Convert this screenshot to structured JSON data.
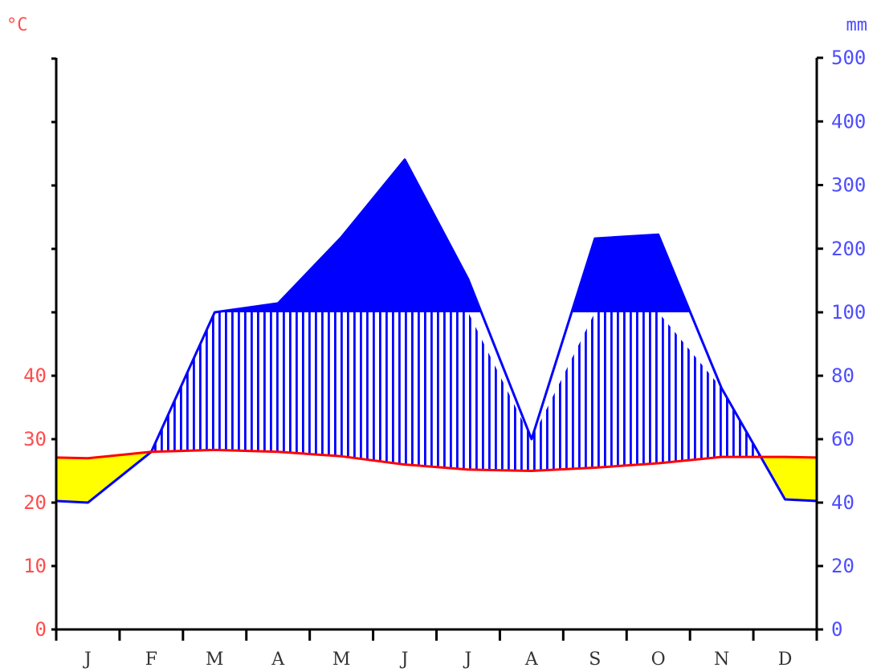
{
  "chart_data": {
    "type": "climate-diagram",
    "units": {
      "temperature": "°C",
      "precipitation": "mm"
    },
    "categories": [
      "J",
      "F",
      "M",
      "A",
      "M",
      "J",
      "J",
      "A",
      "S",
      "O",
      "N",
      "D"
    ],
    "temperature": [
      27,
      28,
      28.3,
      28,
      27.3,
      26,
      25.2,
      25,
      25.5,
      26.2,
      27.2,
      27.2
    ],
    "precipitation": [
      40,
      56,
      100,
      114,
      218,
      340,
      152,
      60,
      216,
      222,
      76,
      41
    ],
    "temperature_axis": {
      "ticks": [
        0,
        10,
        20,
        30,
        40
      ],
      "tick_labels": [
        "0",
        "10",
        "20",
        "30",
        "40"
      ],
      "max": 90,
      "unlabeled_ticks": [
        50,
        60,
        70,
        80,
        90
      ]
    },
    "precipitation_axis": {
      "ticks": [
        0,
        20,
        40,
        60,
        80,
        100,
        200,
        300,
        400,
        500
      ],
      "tick_labels": [
        "0",
        "20",
        "40",
        "60",
        "80",
        "100",
        "200",
        "300",
        "400",
        "500"
      ],
      "linear_max": 100,
      "scale_above_100": "compressed (1/10)"
    },
    "colors": {
      "temperature": "#ff0000",
      "precipitation": "#0000ff",
      "temperature_axis_text": "#ff4d4d",
      "precipitation_axis_text": "#4d4dff",
      "arid": "#ffff00",
      "perhumid": "#0000ff",
      "humid_hatch": "#0000ff",
      "axis": "#000000"
    }
  }
}
